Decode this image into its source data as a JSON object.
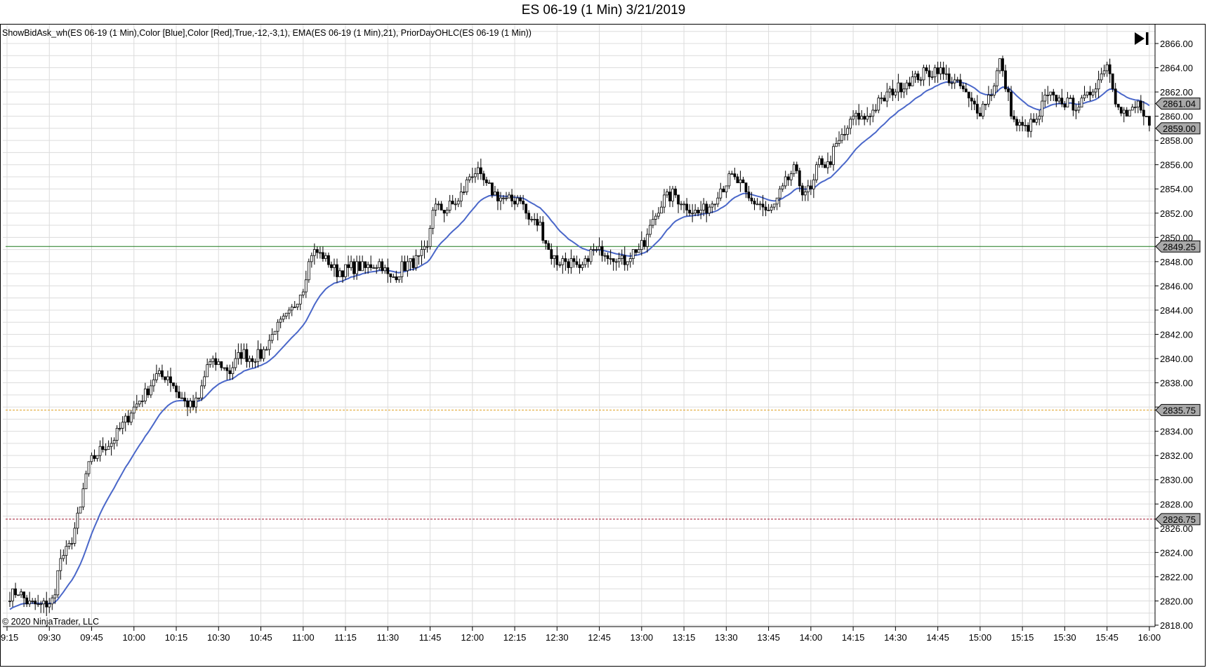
{
  "window": {
    "title": "ES 06-19 (1 Min)  3/21/2019"
  },
  "indicators": {
    "label": "ShowBidAsk_wh(ES 06-19 (1 Min),Color [Blue],Color [Red],True,-12,-3,1),  EMA(ES 06-19 (1 Min),21),  PriorDayOHLC(ES 06-19 (1 Min))"
  },
  "footer": {
    "copyright": "© 2020 NinjaTrader, LLC"
  },
  "controls": {
    "scroll_to_end_icon": "skip-to-end-icon"
  },
  "colors": {
    "ema": "#4a67c9",
    "prior_high": "#1f7a1f",
    "prior_close": "#e0a020",
    "prior_low": "#a01830",
    "grid": "#dcdcdc",
    "price_tag_bg": "#a9a9a9",
    "up_candle": "#ffffff",
    "down_candle": "#000000"
  },
  "price_markers": [
    {
      "name": "last-price",
      "value": "2861.04",
      "price": 2861.04,
      "line": false
    },
    {
      "name": "current-close",
      "value": "2859.00",
      "price": 2859.0,
      "line": false
    },
    {
      "name": "prior-day-high",
      "value": "2849.25",
      "price": 2849.25,
      "line": true,
      "style": "solid",
      "color": "#1f7a1f"
    },
    {
      "name": "prior-day-close",
      "value": "2835.75",
      "price": 2835.75,
      "line": true,
      "style": "dashed",
      "color": "#e0a020"
    },
    {
      "name": "prior-day-low",
      "value": "2826.75",
      "price": 2826.75,
      "line": true,
      "style": "dashed",
      "color": "#a01830"
    }
  ],
  "chart_data": {
    "type": "candlestick",
    "title": "ES 06-19 (1 Min)  3/21/2019",
    "instrument": "ES 06-19",
    "interval": "1 Min",
    "date": "3/21/2019",
    "xlabel": "",
    "ylabel": "",
    "ylim": [
      2818,
      2866
    ],
    "y_ticks": [
      "2866.00",
      "2864.00",
      "2862.00",
      "2860.00",
      "2858.00",
      "2856.00",
      "2854.00",
      "2852.00",
      "2850.00",
      "2848.00",
      "2846.00",
      "2844.00",
      "2842.00",
      "2840.00",
      "2838.00",
      "2836.00",
      "2834.00",
      "2832.00",
      "2830.00",
      "2828.00",
      "2826.00",
      "2824.00",
      "2822.00",
      "2820.00",
      "2818.00"
    ],
    "x_ticks": [
      "09:15",
      "09:30",
      "09:45",
      "10:00",
      "10:15",
      "10:30",
      "10:45",
      "11:00",
      "11:15",
      "11:30",
      "11:45",
      "12:00",
      "12:15",
      "12:30",
      "12:45",
      "13:00",
      "13:15",
      "13:30",
      "13:45",
      "14:00",
      "14:15",
      "14:30",
      "14:45",
      "15:00",
      "15:15",
      "15:30",
      "15:45",
      "16:00"
    ],
    "grid": true,
    "legend": [
      "EMA(21)",
      "PriorDayOHLC"
    ],
    "series": [
      {
        "name": "EMA(21)",
        "type": "line",
        "color": "#4a67c9"
      },
      {
        "name": "Prior Day High",
        "type": "hline",
        "value": 2849.25
      },
      {
        "name": "Prior Day Close",
        "type": "hline",
        "value": 2835.75
      },
      {
        "name": "Prior Day Low",
        "type": "hline",
        "value": 2826.75
      }
    ],
    "path_waypoints": [
      {
        "t": "09:16",
        "p": 2820.5
      },
      {
        "t": "09:19",
        "p": 2820.8
      },
      {
        "t": "09:22",
        "p": 2819.8
      },
      {
        "t": "09:26",
        "p": 2819.6
      },
      {
        "t": "09:30",
        "p": 2819.9
      },
      {
        "t": "09:32",
        "p": 2820.2
      },
      {
        "t": "09:33",
        "p": 2823.0
      },
      {
        "t": "09:37",
        "p": 2824.5
      },
      {
        "t": "09:41",
        "p": 2827.5
      },
      {
        "t": "09:43",
        "p": 2830.5
      },
      {
        "t": "09:45",
        "p": 2831.5
      },
      {
        "t": "09:48",
        "p": 2832.5
      },
      {
        "t": "09:52",
        "p": 2833.0
      },
      {
        "t": "09:56",
        "p": 2834.5
      },
      {
        "t": "10:00",
        "p": 2836.0
      },
      {
        "t": "10:04",
        "p": 2837.0
      },
      {
        "t": "10:07",
        "p": 2838.5
      },
      {
        "t": "10:12",
        "p": 2838.6
      },
      {
        "t": "10:16",
        "p": 2837.0
      },
      {
        "t": "10:20",
        "p": 2836.0
      },
      {
        "t": "10:23",
        "p": 2836.5
      },
      {
        "t": "10:26",
        "p": 2839.5
      },
      {
        "t": "10:30",
        "p": 2839.5
      },
      {
        "t": "10:34",
        "p": 2839.0
      },
      {
        "t": "10:38",
        "p": 2840.5
      },
      {
        "t": "10:42",
        "p": 2840.0
      },
      {
        "t": "10:46",
        "p": 2840.5
      },
      {
        "t": "10:50",
        "p": 2842.5
      },
      {
        "t": "10:55",
        "p": 2843.5
      },
      {
        "t": "11:00",
        "p": 2846.0
      },
      {
        "t": "11:03",
        "p": 2848.8
      },
      {
        "t": "11:07",
        "p": 2848.5
      },
      {
        "t": "11:12",
        "p": 2847.2
      },
      {
        "t": "11:17",
        "p": 2847.5
      },
      {
        "t": "11:22",
        "p": 2847.5
      },
      {
        "t": "11:27",
        "p": 2848.0
      },
      {
        "t": "11:31",
        "p": 2846.5
      },
      {
        "t": "11:35",
        "p": 2847.5
      },
      {
        "t": "11:40",
        "p": 2848.0
      },
      {
        "t": "11:44",
        "p": 2849.0
      },
      {
        "t": "11:46",
        "p": 2852.5
      },
      {
        "t": "11:50",
        "p": 2852.3
      },
      {
        "t": "11:55",
        "p": 2853.0
      },
      {
        "t": "11:59",
        "p": 2855.0
      },
      {
        "t": "12:01",
        "p": 2855.5
      },
      {
        "t": "12:04",
        "p": 2854.5
      },
      {
        "t": "12:08",
        "p": 2853.5
      },
      {
        "t": "12:12",
        "p": 2853.0
      },
      {
        "t": "12:17",
        "p": 2853.3
      },
      {
        "t": "12:20",
        "p": 2851.5
      },
      {
        "t": "12:24",
        "p": 2851.0
      },
      {
        "t": "12:27",
        "p": 2849.0
      },
      {
        "t": "12:30",
        "p": 2848.0
      },
      {
        "t": "12:35",
        "p": 2848.0
      },
      {
        "t": "12:38",
        "p": 2847.0
      },
      {
        "t": "12:42",
        "p": 2848.8
      },
      {
        "t": "12:46",
        "p": 2849.0
      },
      {
        "t": "12:50",
        "p": 2848.5
      },
      {
        "t": "12:54",
        "p": 2848.0
      },
      {
        "t": "12:58",
        "p": 2849.0
      },
      {
        "t": "13:01",
        "p": 2849.3
      },
      {
        "t": "13:04",
        "p": 2851.5
      },
      {
        "t": "13:08",
        "p": 2853.3
      },
      {
        "t": "13:12",
        "p": 2853.5
      },
      {
        "t": "13:16",
        "p": 2852.5
      },
      {
        "t": "13:20",
        "p": 2852.0
      },
      {
        "t": "13:24",
        "p": 2852.7
      },
      {
        "t": "13:28",
        "p": 2854.0
      },
      {
        "t": "13:32",
        "p": 2855.0
      },
      {
        "t": "13:35",
        "p": 2854.5
      },
      {
        "t": "13:38",
        "p": 2853.0
      },
      {
        "t": "13:42",
        "p": 2852.7
      },
      {
        "t": "13:45",
        "p": 2852.0
      },
      {
        "t": "13:48",
        "p": 2853.0
      },
      {
        "t": "13:51",
        "p": 2854.5
      },
      {
        "t": "13:54",
        "p": 2855.5
      },
      {
        "t": "13:57",
        "p": 2854.0
      },
      {
        "t": "14:00",
        "p": 2853.8
      },
      {
        "t": "14:03",
        "p": 2856.3
      },
      {
        "t": "14:06",
        "p": 2856.0
      },
      {
        "t": "14:09",
        "p": 2857.5
      },
      {
        "t": "14:12",
        "p": 2858.5
      },
      {
        "t": "14:15",
        "p": 2860.0
      },
      {
        "t": "14:19",
        "p": 2859.8
      },
      {
        "t": "14:22",
        "p": 2860.5
      },
      {
        "t": "14:26",
        "p": 2861.5
      },
      {
        "t": "14:30",
        "p": 2862.3
      },
      {
        "t": "14:35",
        "p": 2863.0
      },
      {
        "t": "14:40",
        "p": 2863.5
      },
      {
        "t": "14:45",
        "p": 2863.9
      },
      {
        "t": "14:49",
        "p": 2863.0
      },
      {
        "t": "14:53",
        "p": 2862.5
      },
      {
        "t": "14:57",
        "p": 2861.0
      },
      {
        "t": "15:00",
        "p": 2860.5
      },
      {
        "t": "15:04",
        "p": 2862.0
      },
      {
        "t": "15:07",
        "p": 2864.5
      },
      {
        "t": "15:09",
        "p": 2862.5
      },
      {
        "t": "15:12",
        "p": 2859.5
      },
      {
        "t": "15:16",
        "p": 2859.0
      },
      {
        "t": "15:20",
        "p": 2859.5
      },
      {
        "t": "15:23",
        "p": 2861.5
      },
      {
        "t": "15:27",
        "p": 2861.5
      },
      {
        "t": "15:31",
        "p": 2861.0
      },
      {
        "t": "15:35",
        "p": 2861.0
      },
      {
        "t": "15:38",
        "p": 2861.5
      },
      {
        "t": "15:42",
        "p": 2863.0
      },
      {
        "t": "15:45",
        "p": 2864.5
      },
      {
        "t": "15:48",
        "p": 2861.5
      },
      {
        "t": "15:52",
        "p": 2860.0
      },
      {
        "t": "15:56",
        "p": 2861.0
      },
      {
        "t": "16:00",
        "p": 2859.0
      }
    ],
    "last_price": 2861.04,
    "close": 2859.0
  }
}
